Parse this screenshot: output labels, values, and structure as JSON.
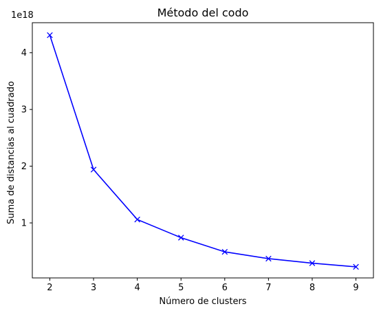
{
  "chart_data": {
    "type": "line",
    "title": "Método del codo",
    "xlabel": "Número de clusters",
    "ylabel": "Suma de distancias al cuadrado",
    "y_offset_label": "1e18",
    "x": [
      2,
      3,
      4,
      5,
      6,
      7,
      8,
      9
    ],
    "series": [
      {
        "values": [
          4.31,
          1.94,
          1.06,
          0.74,
          0.49,
          0.37,
          0.29,
          0.225
        ],
        "color": "#0000ff",
        "marker": "x"
      }
    ],
    "xlim": [
      1.6,
      9.4
    ],
    "ylim": [
      0.03,
      4.53
    ],
    "xticks": [
      2,
      3,
      4,
      5,
      6,
      7,
      8,
      9
    ],
    "yticks": [
      1,
      2,
      3,
      4
    ],
    "grid": false,
    "legend": "none"
  }
}
